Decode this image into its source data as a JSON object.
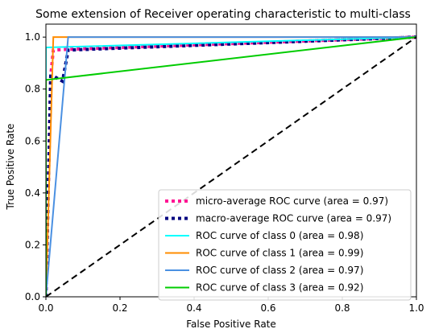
{
  "chart_data": {
    "type": "line",
    "title": "Some extension of Receiver operating characteristic to multi-class",
    "xlabel": "False Positive Rate",
    "ylabel": "True Positive Rate",
    "xlim": [
      0.0,
      1.0
    ],
    "ylim": [
      0.0,
      1.05
    ],
    "x_ticks": [
      0.0,
      0.2,
      0.4,
      0.6,
      0.8,
      1.0
    ],
    "y_ticks": [
      0.0,
      0.2,
      0.4,
      0.6,
      0.8,
      1.0
    ],
    "x_tick_labels": [
      "0.0",
      "0.2",
      "0.4",
      "0.6",
      "0.8",
      "1.0"
    ],
    "y_tick_labels": [
      "0.0",
      "0.2",
      "0.4",
      "0.6",
      "0.8",
      "1.0"
    ],
    "grid": false,
    "legend_position": "lower-right",
    "series": [
      {
        "name": "micro-average ROC curve (area = 0.97)",
        "color": "#ff1493",
        "style": "dotted",
        "x": [
          0.0,
          0.013,
          0.02,
          0.06,
          1.0
        ],
        "y": [
          0.0,
          0.85,
          0.95,
          0.953,
          1.0
        ]
      },
      {
        "name": "macro-average ROC curve (area = 0.97)",
        "color": "#000080",
        "style": "dotted",
        "x": [
          0.0,
          0.013,
          0.02,
          0.045,
          0.06,
          1.0
        ],
        "y": [
          0.0,
          0.85,
          0.85,
          0.83,
          0.95,
          1.0
        ]
      },
      {
        "name": "ROC curve of class 0 (area = 0.98)",
        "color": "#00ffff",
        "style": "solid",
        "x": [
          0.0,
          0.0,
          1.0
        ],
        "y": [
          0.0,
          0.96,
          1.0
        ]
      },
      {
        "name": "ROC curve of class 1 (area = 0.99)",
        "color": "#ff8c00",
        "style": "solid",
        "x": [
          0.0,
          0.02,
          1.0
        ],
        "y": [
          0.0,
          1.0,
          1.0
        ]
      },
      {
        "name": "ROC curve of class 2 (area = 0.97)",
        "color": "#4a90e2",
        "style": "solid",
        "x": [
          0.0,
          0.06,
          1.0
        ],
        "y": [
          0.0,
          1.0,
          1.0
        ]
      },
      {
        "name": "ROC curve of class 3 (area = 0.92)",
        "color": "#00cc00",
        "style": "solid",
        "x": [
          0.0,
          0.0,
          1.0
        ],
        "y": [
          0.0,
          0.835,
          1.0
        ]
      },
      {
        "name": "",
        "color": "#000000",
        "style": "dashed",
        "x": [
          0.0,
          1.0
        ],
        "y": [
          0.0,
          1.0
        ]
      }
    ]
  }
}
